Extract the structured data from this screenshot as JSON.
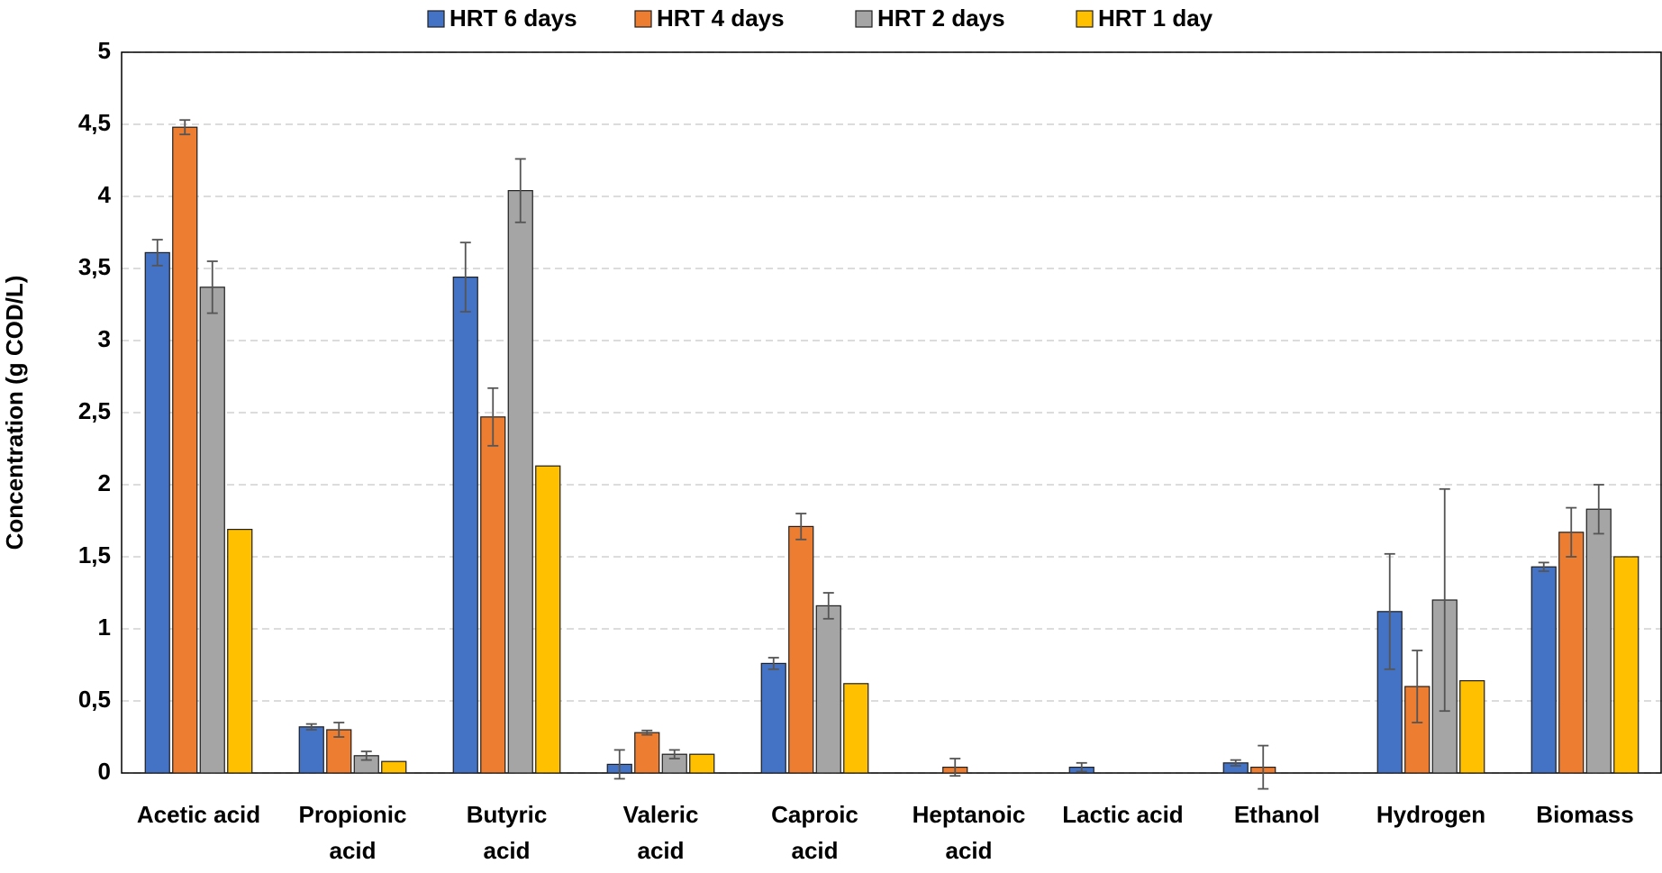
{
  "chart_data": {
    "type": "bar",
    "ylabel": "Concentration (g COD/L)",
    "categories": [
      [
        "Acetic acid"
      ],
      [
        "Propionic",
        "acid"
      ],
      [
        "Butyric",
        "acid"
      ],
      [
        "Valeric",
        "acid"
      ],
      [
        "Caproic",
        "acid"
      ],
      [
        "Heptanoic",
        "acid"
      ],
      [
        "Lactic acid"
      ],
      [
        "Ethanol"
      ],
      [
        "Hydrogen"
      ],
      [
        "Biomass"
      ]
    ],
    "series": [
      {
        "name": "HRT 6 days",
        "color": "#4472c4",
        "values": [
          3.61,
          0.32,
          3.44,
          0.06,
          0.76,
          0,
          0.04,
          0.07,
          1.12,
          1.43
        ],
        "errors": [
          0.09,
          0.02,
          0.24,
          0.1,
          0.04,
          null,
          0.03,
          0.02,
          0.4,
          0.03
        ]
      },
      {
        "name": "HRT 4 days",
        "color": "#ed7d31",
        "values": [
          4.48,
          0.3,
          2.47,
          0.28,
          1.71,
          0.04,
          0,
          0.04,
          0.6,
          1.67
        ],
        "errors": [
          0.05,
          0.05,
          0.2,
          0.015,
          0.09,
          0.06,
          null,
          0.15,
          0.25,
          0.17
        ]
      },
      {
        "name": "HRT 2 days",
        "color": "#a5a5a5",
        "values": [
          3.37,
          0.12,
          4.04,
          0.13,
          1.16,
          0,
          0,
          0,
          1.2,
          1.83
        ],
        "errors": [
          0.18,
          0.03,
          0.22,
          0.03,
          0.09,
          null,
          null,
          null,
          0.77,
          0.17
        ]
      },
      {
        "name": "HRT 1 day",
        "color": "#ffc000",
        "values": [
          1.69,
          0.08,
          2.13,
          0.13,
          0.62,
          0,
          0,
          0,
          0.64,
          1.5
        ]
      }
    ],
    "ylim": [
      0,
      5
    ],
    "yticks": [
      0,
      {
        "value": 0.5,
        "label": "0,5"
      },
      1,
      {
        "value": 1.5,
        "label": "1,5"
      },
      2,
      {
        "value": 2.5,
        "label": "2,5"
      },
      3,
      {
        "value": 3.5,
        "label": "3,5"
      },
      4,
      {
        "value": 4.5,
        "label": "4,5"
      },
      5
    ],
    "grid": true
  }
}
